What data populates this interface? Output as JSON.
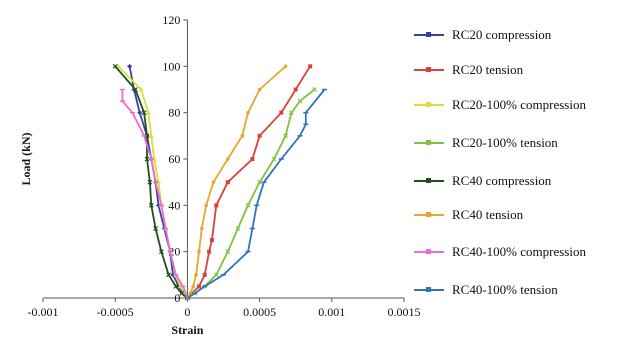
{
  "chart_data": {
    "type": "line",
    "title": "",
    "xlabel": "Strain",
    "ylabel": "Load (kN)",
    "xlim": [
      -0.001,
      0.0015
    ],
    "ylim": [
      0,
      120
    ],
    "xticks": [
      "-0.001",
      "-0.0005",
      "0",
      "0.0005",
      "0.001",
      "0.0015"
    ],
    "yticks": [
      "0",
      "20",
      "40",
      "60",
      "80",
      "100",
      "120"
    ],
    "grid": "none",
    "legend_position": "right",
    "series": [
      {
        "name": "RC20 compression",
        "color": "#3b3fa8",
        "marker": "diamond",
        "points": [
          [
            0,
            0
          ],
          [
            -3e-05,
            2
          ],
          [
            -6e-05,
            5
          ],
          [
            -0.0001,
            10
          ],
          [
            -0.00012,
            20
          ],
          [
            -0.00016,
            30
          ],
          [
            -0.0002,
            40
          ],
          [
            -0.00022,
            50
          ],
          [
            -0.00025,
            60
          ],
          [
            -0.00028,
            70
          ],
          [
            -0.00033,
            80
          ],
          [
            -0.00037,
            90
          ],
          [
            -0.0004,
            100
          ]
        ]
      },
      {
        "name": "RC20 tension",
        "color": "#d9413a",
        "marker": "square",
        "points": [
          [
            0,
            0
          ],
          [
            3e-05,
            2
          ],
          [
            8e-05,
            5
          ],
          [
            0.00012,
            10
          ],
          [
            0.00015,
            20
          ],
          [
            0.00017,
            25
          ],
          [
            0.0002,
            40
          ],
          [
            0.00028,
            50
          ],
          [
            0.00045,
            60
          ],
          [
            0.0005,
            70
          ],
          [
            0.00065,
            80
          ],
          [
            0.00075,
            90
          ],
          [
            0.00085,
            100
          ]
        ]
      },
      {
        "name": "RC20-100% compression",
        "color": "#d8df3a",
        "marker": "triangle",
        "points": [
          [
            0,
            0
          ],
          [
            -2e-05,
            2
          ],
          [
            -5e-05,
            5
          ],
          [
            -8e-05,
            10
          ],
          [
            -0.00012,
            20
          ],
          [
            -0.00015,
            30
          ],
          [
            -0.00018,
            40
          ],
          [
            -0.0002,
            50
          ],
          [
            -0.00023,
            60
          ],
          [
            -0.00025,
            70
          ],
          [
            -0.00027,
            80
          ],
          [
            -0.00032,
            90
          ],
          [
            -0.00048,
            100
          ]
        ]
      },
      {
        "name": "RC20-100% tension",
        "color": "#7fc241",
        "marker": "x",
        "points": [
          [
            0,
            0
          ],
          [
            5e-05,
            2
          ],
          [
            0.00012,
            5
          ],
          [
            0.0002,
            10
          ],
          [
            0.00028,
            20
          ],
          [
            0.00035,
            30
          ],
          [
            0.00042,
            40
          ],
          [
            0.0005,
            50
          ],
          [
            0.0006,
            60
          ],
          [
            0.00068,
            70
          ],
          [
            0.00072,
            80
          ],
          [
            0.00078,
            85
          ],
          [
            0.00088,
            90
          ]
        ]
      },
      {
        "name": "RC40 compression",
        "color": "#1f4f1f",
        "marker": "star",
        "points": [
          [
            0,
            0
          ],
          [
            -4e-05,
            2
          ],
          [
            -8e-05,
            5
          ],
          [
            -0.00013,
            10
          ],
          [
            -0.00018,
            20
          ],
          [
            -0.00022,
            30
          ],
          [
            -0.00025,
            40
          ],
          [
            -0.00026,
            50
          ],
          [
            -0.00028,
            60
          ],
          [
            -0.00028,
            70
          ],
          [
            -0.0003,
            80
          ],
          [
            -0.00036,
            90
          ],
          [
            -0.0005,
            100
          ]
        ]
      },
      {
        "name": "RC40 tension",
        "color": "#e5a72b",
        "marker": "dot",
        "points": [
          [
            0,
            0
          ],
          [
            2e-05,
            2
          ],
          [
            4e-05,
            5
          ],
          [
            6e-05,
            10
          ],
          [
            8e-05,
            20
          ],
          [
            0.0001,
            30
          ],
          [
            0.00013,
            40
          ],
          [
            0.00018,
            50
          ],
          [
            0.00028,
            60
          ],
          [
            0.00038,
            70
          ],
          [
            0.00042,
            80
          ],
          [
            0.0005,
            90
          ],
          [
            0.00068,
            100
          ]
        ]
      },
      {
        "name": "RC40-100% compression",
        "color": "#e86fd1",
        "marker": "dash",
        "points": [
          [
            0,
            0
          ],
          [
            -3e-05,
            5
          ],
          [
            -8e-05,
            10
          ],
          [
            -0.00012,
            20
          ],
          [
            -0.00015,
            30
          ],
          [
            -0.00018,
            40
          ],
          [
            -0.00022,
            50
          ],
          [
            -0.00025,
            60
          ],
          [
            -0.0003,
            70
          ],
          [
            -0.00038,
            80
          ],
          [
            -0.00045,
            85
          ],
          [
            -0.00045,
            90
          ]
        ]
      },
      {
        "name": "RC40-100% tension",
        "color": "#2e75b6",
        "marker": "dash",
        "points": [
          [
            0,
            0
          ],
          [
            5e-05,
            2
          ],
          [
            0.00012,
            5
          ],
          [
            0.00025,
            10
          ],
          [
            0.00042,
            20
          ],
          [
            0.00045,
            30
          ],
          [
            0.00048,
            40
          ],
          [
            0.00053,
            50
          ],
          [
            0.00065,
            60
          ],
          [
            0.00078,
            70
          ],
          [
            0.00082,
            75
          ],
          [
            0.00082,
            80
          ],
          [
            0.00095,
            90
          ]
        ]
      }
    ]
  }
}
